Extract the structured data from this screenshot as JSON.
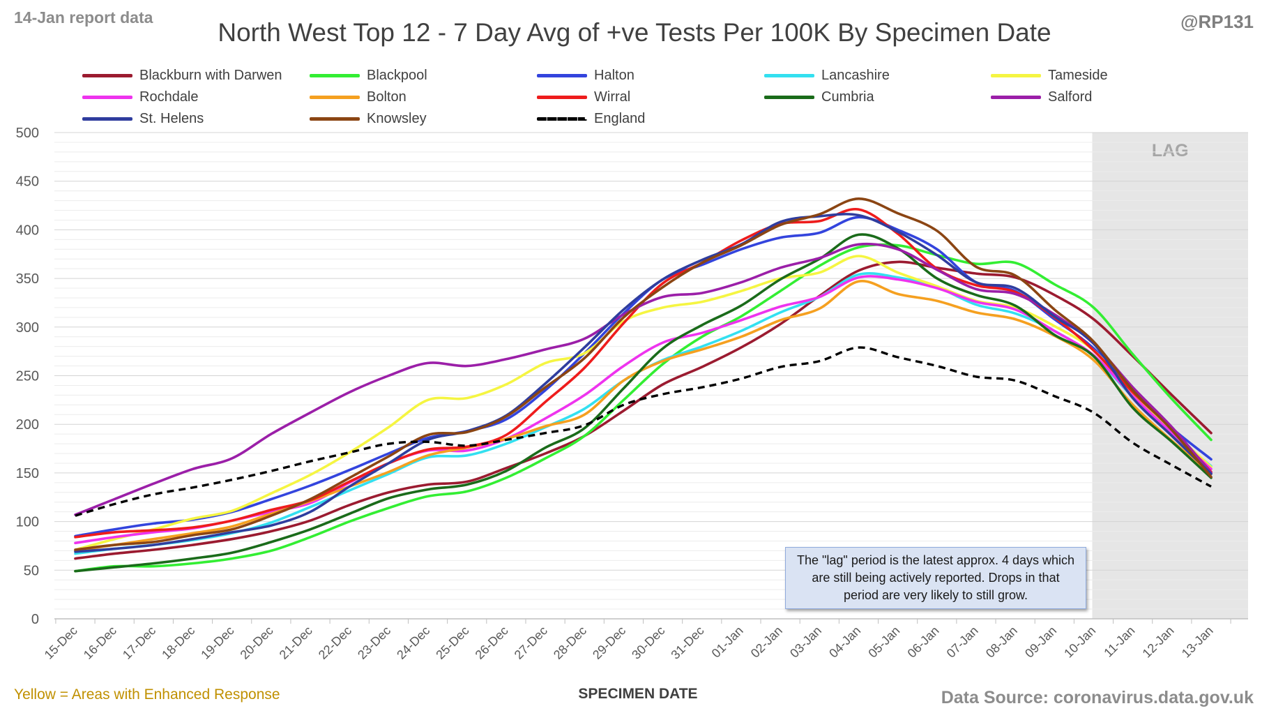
{
  "report_label": "14-Jan report data",
  "handle": "@RP131",
  "footnote": "Yellow = Areas with Enhanced Response",
  "source": "Data Source: coronavirus.data.gov.uk",
  "lag_label": "LAG",
  "lag_note": "The \"lag\" period is the latest approx. 4 days which are still being actively reported. Drops in that period are very likely to still grow.",
  "chart_data": {
    "type": "line",
    "title": "North West Top 12 - 7 Day Avg of +ve Tests Per 100K By Specimen Date",
    "xlabel": "SPECIMEN DATE",
    "ylabel": "",
    "ylim": [
      0,
      500
    ],
    "yticks": [
      0,
      50,
      100,
      150,
      200,
      250,
      300,
      350,
      400,
      450,
      500
    ],
    "grid": true,
    "legend_position": "top",
    "lag_period": [
      "10-Jan",
      "13-Jan"
    ],
    "categories": [
      "15-Dec",
      "16-Dec",
      "17-Dec",
      "18-Dec",
      "19-Dec",
      "20-Dec",
      "21-Dec",
      "22-Dec",
      "23-Dec",
      "24-Dec",
      "25-Dec",
      "26-Dec",
      "27-Dec",
      "28-Dec",
      "29-Dec",
      "30-Dec",
      "31-Dec",
      "01-Jan",
      "02-Jan",
      "03-Jan",
      "04-Jan",
      "05-Jan",
      "06-Jan",
      "07-Jan",
      "08-Jan",
      "09-Jan",
      "10-Jan",
      "11-Jan",
      "12-Jan",
      "13-Jan"
    ],
    "series": [
      {
        "name": "Blackburn with Darwen",
        "color": "#9b1b30",
        "values": [
          62,
          67,
          71,
          76,
          82,
          90,
          101,
          117,
          130,
          138,
          141,
          155,
          170,
          188,
          214,
          241,
          259,
          279,
          303,
          332,
          358,
          367,
          361,
          355,
          351,
          333,
          308,
          270,
          230,
          191
        ]
      },
      {
        "name": "Blackpool",
        "color": "#33ee33",
        "values": [
          49,
          54,
          54,
          57,
          62,
          70,
          84,
          100,
          114,
          126,
          131,
          145,
          165,
          188,
          225,
          262,
          290,
          311,
          337,
          363,
          382,
          384,
          374,
          365,
          366,
          344,
          320,
          272,
          226,
          184
        ]
      },
      {
        "name": "Halton",
        "color": "#3344dd",
        "values": [
          85,
          92,
          98,
          102,
          110,
          123,
          137,
          153,
          170,
          186,
          193,
          205,
          235,
          273,
          314,
          349,
          364,
          380,
          392,
          397,
          413,
          400,
          380,
          346,
          337,
          308,
          278,
          234,
          196,
          164
        ]
      },
      {
        "name": "Lancashire",
        "color": "#33e0f0",
        "values": [
          67,
          72,
          76,
          81,
          88,
          99,
          115,
          132,
          149,
          166,
          168,
          180,
          197,
          216,
          245,
          266,
          280,
          296,
          315,
          331,
          354,
          351,
          341,
          323,
          314,
          296,
          270,
          228,
          190,
          157
        ]
      },
      {
        "name": "Tameside",
        "color": "#f5f542",
        "values": [
          71,
          82,
          92,
          103,
          111,
          129,
          148,
          171,
          197,
          225,
          227,
          241,
          263,
          273,
          306,
          320,
          326,
          337,
          350,
          356,
          373,
          356,
          342,
          327,
          320,
          301,
          276,
          232,
          193,
          156
        ]
      },
      {
        "name": "Rochdale",
        "color": "#ee33ee",
        "values": [
          78,
          84,
          89,
          93,
          101,
          110,
          119,
          140,
          160,
          173,
          173,
          185,
          206,
          230,
          260,
          284,
          294,
          307,
          321,
          331,
          351,
          349,
          340,
          326,
          318,
          296,
          271,
          229,
          191,
          154
        ]
      },
      {
        "name": "Bolton",
        "color": "#f5a020",
        "values": [
          70,
          76,
          82,
          88,
          95,
          108,
          121,
          136,
          151,
          168,
          176,
          185,
          198,
          210,
          245,
          265,
          277,
          290,
          307,
          319,
          347,
          334,
          327,
          315,
          308,
          291,
          266,
          220,
          183,
          149
        ]
      },
      {
        "name": "Wirral",
        "color": "#ee1c1c",
        "values": [
          84,
          89,
          91,
          94,
          101,
          112,
          122,
          141,
          160,
          174,
          177,
          189,
          223,
          258,
          304,
          345,
          366,
          389,
          406,
          409,
          421,
          396,
          360,
          343,
          336,
          310,
          276,
          233,
          195,
          151
        ]
      },
      {
        "name": "Cumbria",
        "color": "#1a6b1a",
        "values": [
          49,
          53,
          57,
          62,
          68,
          79,
          92,
          108,
          124,
          133,
          138,
          152,
          176,
          196,
          237,
          278,
          302,
          322,
          349,
          370,
          395,
          381,
          350,
          333,
          322,
          292,
          270,
          217,
          182,
          145
        ]
      },
      {
        "name": "Salford",
        "color": "#9b1fa8",
        "values": [
          107,
          123,
          139,
          154,
          165,
          190,
          212,
          233,
          250,
          263,
          260,
          267,
          277,
          288,
          313,
          331,
          335,
          346,
          361,
          371,
          385,
          380,
          359,
          339,
          334,
          313,
          283,
          238,
          197,
          150
        ]
      },
      {
        "name": "St. Helens",
        "color": "#2f3d9e",
        "values": [
          69,
          72,
          76,
          82,
          89,
          96,
          110,
          136,
          160,
          184,
          193,
          209,
          242,
          279,
          318,
          349,
          369,
          385,
          408,
          414,
          415,
          398,
          374,
          346,
          340,
          311,
          283,
          227,
          188,
          149
        ]
      },
      {
        "name": "Knowsley",
        "color": "#8b4513",
        "values": [
          71,
          76,
          79,
          86,
          92,
          106,
          123,
          145,
          167,
          189,
          192,
          208,
          238,
          268,
          310,
          341,
          366,
          384,
          405,
          416,
          432,
          417,
          399,
          362,
          353,
          318,
          285,
          235,
          194,
          146
        ]
      },
      {
        "name": "England",
        "color": "#000000",
        "dashed": true,
        "values": [
          106,
          118,
          128,
          135,
          143,
          152,
          162,
          171,
          180,
          182,
          178,
          184,
          191,
          199,
          220,
          231,
          238,
          247,
          259,
          265,
          279,
          269,
          260,
          249,
          245,
          229,
          212,
          181,
          158,
          136
        ]
      }
    ]
  }
}
